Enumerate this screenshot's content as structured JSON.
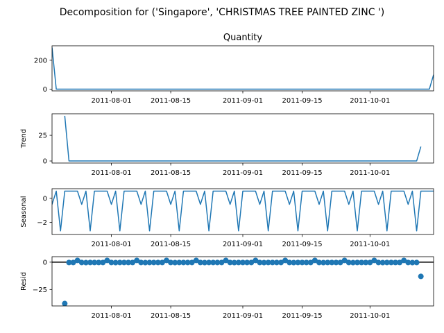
{
  "chart_data": {
    "type": "line",
    "title": "Decomposition for ('Singapore', 'CHRISTMAS TREE PAINTED ZINC ')",
    "line_color": "#1f77b4",
    "x_range": [
      "2011-07-18",
      "2011-10-16"
    ],
    "x_ticks": [
      "2011-08-01",
      "2011-08-15",
      "2011-09-01",
      "2011-09-15",
      "2011-10-01"
    ],
    "panels": [
      {
        "key": "observed",
        "title": "Quantity",
        "ylabel": "",
        "style": "line",
        "ylim": [
          -12,
          300
        ],
        "yticks": [
          0,
          200
        ],
        "points": [
          [
            "2011-07-18",
            288
          ],
          [
            "2011-07-19",
            0
          ],
          [
            "2011-10-15",
            0
          ],
          [
            "2011-10-16",
            100
          ]
        ]
      },
      {
        "key": "trend",
        "title": "",
        "ylabel": "Trend",
        "style": "line",
        "ylim": [
          -2,
          46
        ],
        "yticks": [
          0,
          25
        ],
        "points": [
          [
            "2011-07-21",
            44
          ],
          [
            "2011-07-22",
            0
          ],
          [
            "2011-10-12",
            0
          ],
          [
            "2011-10-13",
            14
          ]
        ]
      },
      {
        "key": "seasonal",
        "title": "",
        "ylabel": "Seasonal",
        "style": "line",
        "ylim": [
          -3.0,
          0.8
        ],
        "yticks": [
          0,
          -2
        ],
        "period": 7,
        "pattern": [
          0.6,
          -0.5,
          0.6,
          -2.7,
          0.6,
          0.6,
          0.6
        ],
        "start": "2011-07-17",
        "end": "2011-10-16"
      },
      {
        "key": "resid",
        "title": "",
        "ylabel": "Resid",
        "style": "scatter",
        "ylim": [
          -40,
          5
        ],
        "yticks": [
          0,
          -25
        ],
        "baseline": 0,
        "special": [
          [
            "2011-07-21",
            -37.8
          ],
          [
            "2011-10-13",
            -13
          ]
        ],
        "range": [
          "2011-07-22",
          "2011-10-12"
        ],
        "pattern": [
          -0.3,
          -0.3,
          1.6,
          -0.3,
          -0.4,
          -0.3,
          -0.3
        ]
      }
    ]
  }
}
